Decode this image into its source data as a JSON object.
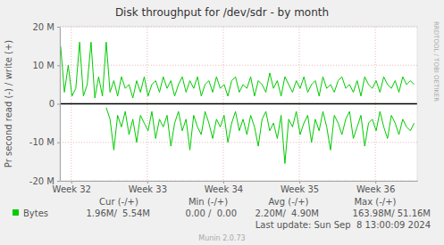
{
  "chart_data": {
    "type": "line",
    "title": "Disk throughput for /dev/sdr - by month",
    "y_label": "Pr second read (-) / write (+)",
    "x": [
      31.86,
      31.91,
      31.96,
      32.01,
      32.06,
      32.11,
      32.16,
      32.21,
      32.26,
      32.31,
      32.36,
      32.41,
      32.46,
      32.51,
      32.56,
      32.61,
      32.66,
      32.71,
      32.76,
      32.81,
      32.86,
      32.91,
      32.96,
      33.01,
      33.06,
      33.11,
      33.16,
      33.21,
      33.26,
      33.31,
      33.36,
      33.41,
      33.46,
      33.51,
      33.56,
      33.61,
      33.66,
      33.71,
      33.76,
      33.81,
      33.86,
      33.91,
      33.96,
      34.01,
      34.06,
      34.11,
      34.16,
      34.21,
      34.26,
      34.31,
      34.36,
      34.41,
      34.46,
      34.51,
      34.56,
      34.61,
      34.66,
      34.71,
      34.76,
      34.81,
      34.86,
      34.91,
      34.96,
      35.01,
      35.06,
      35.11,
      35.16,
      35.21,
      35.26,
      35.31,
      35.36,
      35.41,
      35.46,
      35.51,
      35.56,
      35.61,
      35.66,
      35.71,
      35.76,
      35.81,
      35.86,
      35.91,
      35.96,
      36.01,
      36.06,
      36.11,
      36.16,
      36.21,
      36.26,
      36.31,
      36.36,
      36.41,
      36.46,
      36.51
    ],
    "series": [
      {
        "name": "Bytes",
        "color": "#00cc00",
        "values": [
          15,
          3,
          10,
          2,
          4,
          16,
          2,
          5,
          16,
          1.5,
          7,
          2,
          16,
          3,
          6,
          2,
          7,
          4,
          5,
          1.5,
          6,
          3,
          7,
          2,
          5,
          6,
          3,
          7,
          4,
          6,
          2,
          5,
          7,
          3,
          6,
          4,
          7,
          2,
          5,
          6,
          3,
          7,
          4,
          5,
          2,
          6,
          7,
          3,
          5,
          4,
          7,
          2,
          6,
          5,
          3,
          8,
          4,
          6,
          2,
          7,
          5,
          3,
          6,
          4,
          7,
          3,
          5,
          6,
          2,
          7,
          4,
          5,
          3,
          6,
          7,
          4,
          5,
          3,
          6,
          2,
          7,
          5,
          4,
          6,
          3,
          7,
          5,
          4,
          6,
          3,
          7,
          5,
          6,
          5
        ]
      },
      {
        "color": "#00cc00",
        "values": [
          null,
          null,
          null,
          null,
          null,
          null,
          null,
          null,
          null,
          null,
          null,
          null,
          -1,
          -4,
          -12,
          -3,
          -6,
          -2,
          -8,
          -4,
          -10,
          -3,
          -5,
          -7,
          -2,
          -9,
          -4,
          -6,
          -3,
          -11,
          -5,
          -2,
          -7,
          -4,
          -12,
          -3,
          -6,
          -8,
          -2,
          -5,
          -9,
          -4,
          -6,
          -3,
          -10,
          -5,
          -2,
          -7,
          -4,
          -8,
          -3,
          -6,
          -11,
          -4,
          -2,
          -7,
          -5,
          -9,
          -3,
          -15.5,
          -4,
          -6,
          -2,
          -8,
          -5,
          -3,
          -10,
          -4,
          -7,
          -2,
          -6,
          -12,
          -3,
          -5,
          -8,
          -4,
          -2,
          -9,
          -6,
          -3,
          -11,
          -5,
          -4,
          -7,
          -2,
          -6,
          -9,
          -3,
          -5,
          -8,
          -4,
          -6,
          -7,
          -5
        ]
      }
    ],
    "xlim": [
      31.85,
      36.55
    ],
    "xticks": [
      {
        "value": 32,
        "label": "Week 32"
      },
      {
        "value": 33,
        "label": "Week 33"
      },
      {
        "value": 34,
        "label": "Week 34"
      },
      {
        "value": 35,
        "label": "Week 35"
      },
      {
        "value": 36,
        "label": "Week 36"
      }
    ],
    "ylim": [
      -20,
      20
    ],
    "yticks": [
      {
        "value": -20,
        "label": "-20 M"
      },
      {
        "value": -10,
        "label": "-10 M"
      },
      0,
      {
        "value": 10,
        "label": "10 M"
      },
      {
        "value": 20,
        "label": "20 M"
      }
    ],
    "grid": true,
    "stats_table": {
      "headers": [
        "Cur (-/+)",
        "Min (-/+)",
        "Avg (-/+)",
        "Max (-/+)"
      ],
      "rows": [
        {
          "cells": [
            "1.96M/  5.54M",
            "0.00 /  0.00",
            "2.20M/  4.90M",
            "163.98M/ 51.16M"
          ]
        }
      ]
    },
    "last_update": "Last update: Sun Sep  8 13:00:09 2024",
    "credit": "Munin 2.0.73",
    "watermark": "RRDTOOL / TOBI OETIKER"
  }
}
